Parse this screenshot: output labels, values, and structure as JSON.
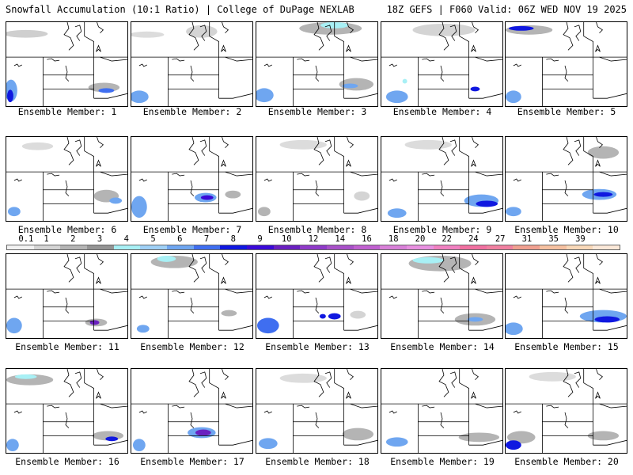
{
  "header": {
    "title_left": "Snowfall Accumulation (10:1 Ratio) | College of DuPage NEXLAB",
    "title_right": "18Z GEFS | F060 Valid: 06Z WED NOV 19 2025"
  },
  "members": [
    {
      "label": "Ensemble Member: 1"
    },
    {
      "label": "Ensemble Member: 2"
    },
    {
      "label": "Ensemble Member: 3"
    },
    {
      "label": "Ensemble Member: 4"
    },
    {
      "label": "Ensemble Member: 5"
    },
    {
      "label": "Ensemble Member: 6"
    },
    {
      "label": "Ensemble Member: 7"
    },
    {
      "label": "Ensemble Member: 8"
    },
    {
      "label": "Ensemble Member: 9"
    },
    {
      "label": "Ensemble Member: 10"
    },
    {
      "label": "Ensemble Member: 11"
    },
    {
      "label": "Ensemble Member: 12"
    },
    {
      "label": "Ensemble Member: 13"
    },
    {
      "label": "Ensemble Member: 14"
    },
    {
      "label": "Ensemble Member: 15"
    },
    {
      "label": "Ensemble Member: 16"
    },
    {
      "label": "Ensemble Member: 17"
    },
    {
      "label": "Ensemble Member: 18"
    },
    {
      "label": "Ensemble Member: 19"
    },
    {
      "label": "Ensemble Member: 20"
    }
  ],
  "legend": {
    "labels": [
      "0.1",
      "1",
      "2",
      "3",
      "4",
      "5",
      "6",
      "7",
      "8",
      "9",
      "10",
      "12",
      "14",
      "16",
      "18",
      "20",
      "22",
      "24",
      "27",
      "31",
      "35",
      "39"
    ],
    "colors": [
      "#f2f2f2",
      "#d4d4d4",
      "#b4b4b4",
      "#949494",
      "#a8f0f5",
      "#9fd0f6",
      "#6fa6f0",
      "#3f6ef0",
      "#1018e0",
      "#3a0ad8",
      "#6a20c0",
      "#8f3ac8",
      "#a850c8",
      "#c060d0",
      "#d880d8",
      "#e890e0",
      "#f080c0",
      "#f070a0",
      "#f080a0",
      "#f0a090",
      "#f5c0a0",
      "#f8d8b8",
      "#fbe8d8"
    ]
  }
}
